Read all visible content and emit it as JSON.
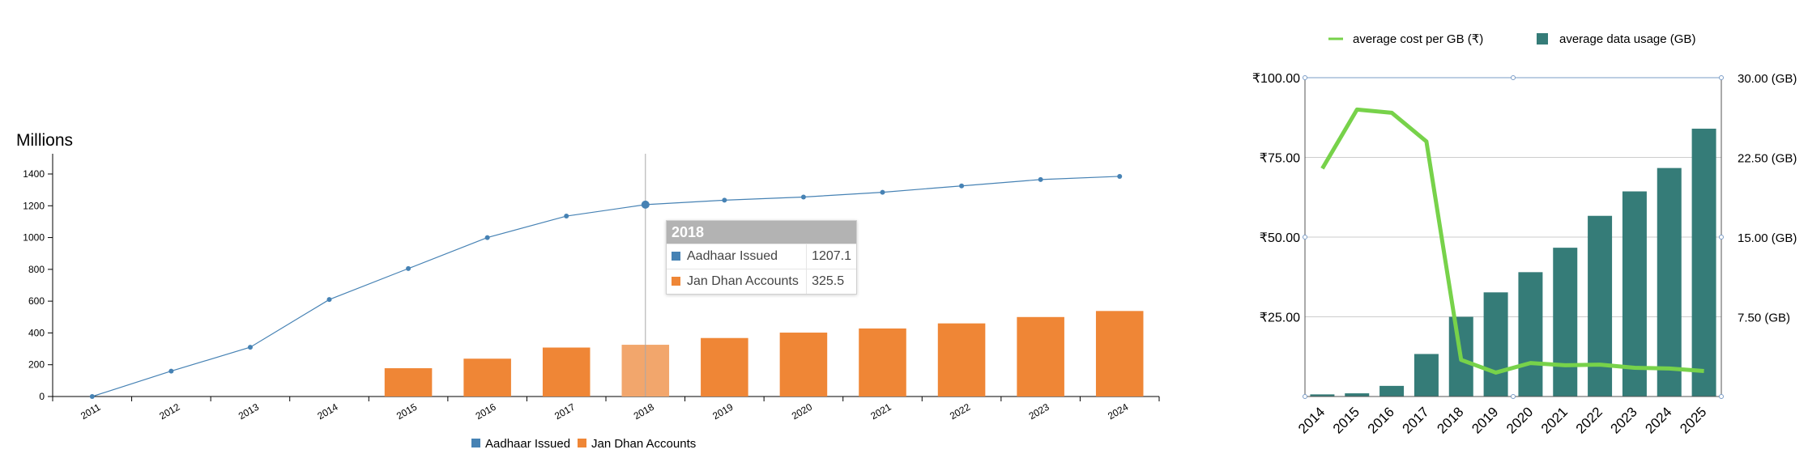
{
  "colors": {
    "aadhaar": "#4682b4",
    "jan_dhan": "#ef8636",
    "jan_dhan_highlight": "#f2a66c",
    "cost_line": "#77d24a",
    "usage_bar": "#357c78",
    "grid": "#cccccc",
    "hover_line": "#aaaaaa"
  },
  "chart_data": [
    {
      "type": "bar",
      "ylabel": "Millions",
      "categories": [
        "2011",
        "2012",
        "2013",
        "2014",
        "2015",
        "2016",
        "2017",
        "2018",
        "2019",
        "2020",
        "2021",
        "2022",
        "2023",
        "2024"
      ],
      "ylim": [
        0,
        1500
      ],
      "yticks": [
        0,
        200,
        400,
        600,
        800,
        1000,
        1200,
        1400
      ],
      "series": [
        {
          "name": "Aadhaar Issued",
          "kind": "line",
          "values": [
            0,
            160,
            310,
            610,
            805,
            1000,
            1135,
            1207.1,
            1235,
            1255,
            1285,
            1325,
            1365,
            1385
          ]
        },
        {
          "name": "Jan Dhan Accounts",
          "kind": "bar",
          "values": [
            null,
            null,
            null,
            null,
            178,
            238,
            308,
            325.5,
            368,
            402,
            428,
            460,
            500,
            538
          ]
        }
      ],
      "legend": "bottom-center",
      "grid": false,
      "tooltip": {
        "title": "2018",
        "rows": [
          {
            "label": "Aadhaar Issued",
            "value": "1207.1"
          },
          {
            "label": "Jan Dhan Accounts",
            "value": "325.5"
          }
        ]
      }
    },
    {
      "type": "bar",
      "categories": [
        "2014",
        "2015",
        "2016",
        "2017",
        "2018",
        "2019",
        "2020",
        "2021",
        "2022",
        "2023",
        "2024",
        "2025"
      ],
      "ylim": [
        0,
        100
      ],
      "y2lim": [
        0,
        30
      ],
      "yticks": [
        "₹100.00",
        "₹75.00",
        "₹50.00",
        "₹25.00"
      ],
      "y2ticks": [
        "30.00 (GB)",
        "22.50 (GB)",
        "15.00 (GB)",
        "7.50 (GB)"
      ],
      "series": [
        {
          "name": "average cost per GB (₹)",
          "kind": "line",
          "axis": "left",
          "values": [
            71.5,
            90,
            89,
            80,
            11.5,
            7.5,
            10.5,
            9.8,
            10,
            9,
            8.8,
            8
          ]
        },
        {
          "name": "average data usage (GB)",
          "kind": "bar",
          "axis": "right",
          "values": [
            0.2,
            0.3,
            1.0,
            4.0,
            7.5,
            9.8,
            11.7,
            14.0,
            17.0,
            19.3,
            21.5,
            25.2
          ]
        }
      ],
      "legend": "top",
      "grid": true
    }
  ]
}
